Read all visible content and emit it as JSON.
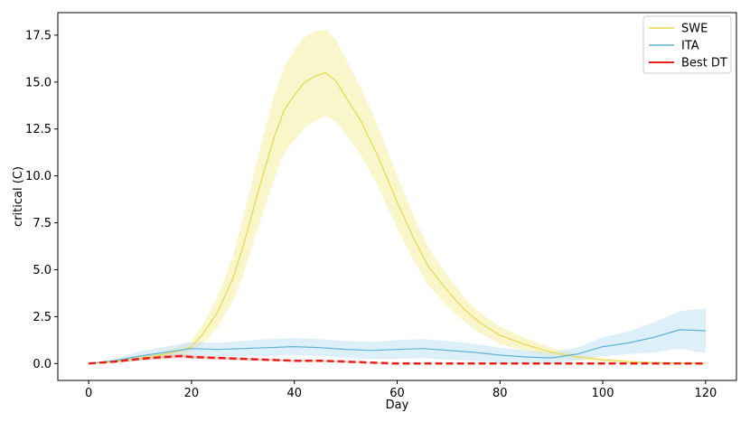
{
  "chart_data": {
    "type": "line",
    "title": "",
    "xlabel": "Day",
    "ylabel": "critical (C)",
    "xlim": [
      -6,
      126
    ],
    "ylim": [
      -0.9,
      18.7
    ],
    "xticks": [
      0,
      20,
      40,
      60,
      80,
      100,
      120
    ],
    "yticks": [
      0.0,
      2.5,
      5.0,
      7.5,
      10.0,
      12.5,
      15.0,
      17.5
    ],
    "xtick_labels": [
      "0",
      "20",
      "40",
      "60",
      "80",
      "100",
      "120"
    ],
    "ytick_labels": [
      "0.0",
      "2.5",
      "5.0",
      "7.5",
      "10.0",
      "12.5",
      "15.0",
      "17.5"
    ],
    "grid": false,
    "legend_position": "top-right",
    "series": [
      {
        "name": "SWE",
        "color": "#e8d84a",
        "band_color": "#f7f0a8",
        "style": "solid",
        "x": [
          0,
          5,
          10,
          15,
          18,
          20,
          22,
          25,
          28,
          30,
          33,
          36,
          38,
          40,
          42,
          44,
          46,
          48,
          50,
          53,
          56,
          60,
          63,
          66,
          70,
          73,
          76,
          80,
          85,
          90,
          95,
          100,
          105,
          110,
          115,
          120
        ],
        "y": [
          0,
          0.1,
          0.3,
          0.5,
          0.7,
          0.9,
          1.5,
          2.7,
          4.5,
          6.2,
          9.2,
          12.0,
          13.5,
          14.3,
          15.0,
          15.3,
          15.5,
          15.1,
          14.2,
          12.9,
          11.2,
          8.6,
          6.8,
          5.2,
          3.8,
          2.9,
          2.2,
          1.5,
          1.0,
          0.6,
          0.35,
          0.2,
          0.1,
          0.05,
          0.02,
          0.0
        ],
        "band": [
          0,
          0.05,
          0.15,
          0.2,
          0.25,
          0.3,
          0.5,
          0.8,
          1.2,
          1.5,
          1.9,
          2.2,
          2.3,
          2.4,
          2.4,
          2.4,
          2.3,
          2.2,
          2.0,
          1.8,
          1.6,
          1.4,
          1.2,
          1.0,
          0.8,
          0.65,
          0.55,
          0.45,
          0.35,
          0.25,
          0.15,
          0.1,
          0.06,
          0.04,
          0.02,
          0.0
        ]
      },
      {
        "name": "ITA",
        "color": "#5fb0d8",
        "band_color": "#c7e4f5",
        "style": "solid",
        "x": [
          0,
          5,
          10,
          15,
          20,
          25,
          30,
          35,
          40,
          45,
          50,
          55,
          60,
          65,
          70,
          75,
          80,
          85,
          90,
          95,
          100,
          105,
          110,
          115,
          120
        ],
        "y": [
          0,
          0.15,
          0.4,
          0.6,
          0.8,
          0.75,
          0.8,
          0.85,
          0.9,
          0.85,
          0.75,
          0.7,
          0.75,
          0.8,
          0.7,
          0.6,
          0.45,
          0.35,
          0.3,
          0.5,
          0.9,
          1.1,
          1.4,
          1.8,
          1.75
        ],
        "band": [
          0,
          0.1,
          0.25,
          0.3,
          0.35,
          0.35,
          0.4,
          0.45,
          0.45,
          0.45,
          0.45,
          0.45,
          0.5,
          0.5,
          0.5,
          0.45,
          0.4,
          0.35,
          0.3,
          0.35,
          0.5,
          0.6,
          0.8,
          1.0,
          1.2
        ]
      },
      {
        "name": "Best DT",
        "color": "#e8221a",
        "band_color": "#f5b3ae",
        "style": "dashed",
        "x": [
          0,
          5,
          10,
          15,
          18,
          20,
          25,
          30,
          35,
          40,
          45,
          50,
          55,
          60,
          65,
          70,
          80,
          90,
          100,
          110,
          120
        ],
        "y": [
          0,
          0.1,
          0.25,
          0.35,
          0.4,
          0.35,
          0.3,
          0.25,
          0.2,
          0.15,
          0.15,
          0.1,
          0.05,
          0.0,
          0.0,
          0.0,
          0.0,
          0.0,
          0.0,
          0.0,
          0.0
        ],
        "band": [
          0,
          0.05,
          0.08,
          0.1,
          0.1,
          0.1,
          0.08,
          0.07,
          0.06,
          0.05,
          0.05,
          0.04,
          0.02,
          0.0,
          0.0,
          0.0,
          0.0,
          0.0,
          0.0,
          0.0,
          0.0
        ]
      }
    ]
  }
}
